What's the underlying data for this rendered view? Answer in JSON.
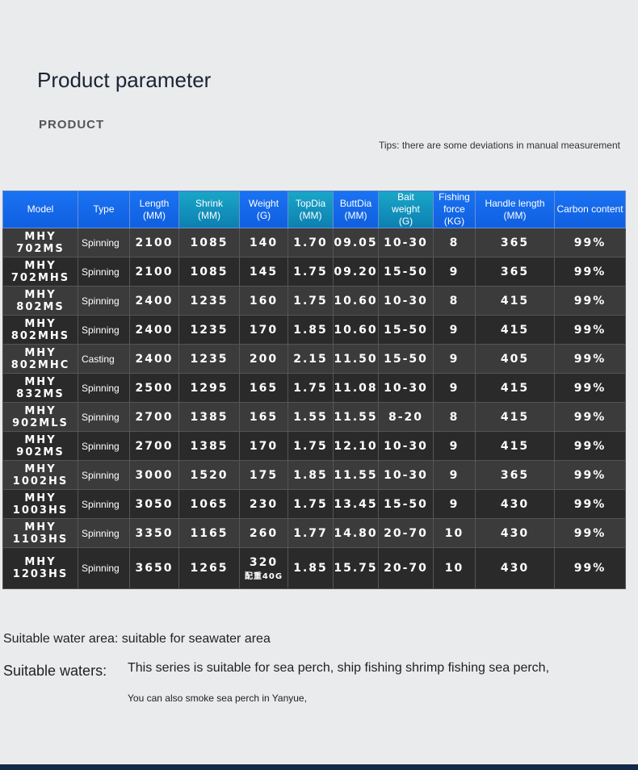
{
  "header": {
    "title": "Product parameter",
    "section": "PRODUCT",
    "tips": "Tips: there are some deviations in manual measurement"
  },
  "table": {
    "headers": [
      [
        "Model"
      ],
      [
        "Type"
      ],
      [
        "Length",
        "(MM)"
      ],
      [
        "Shrink",
        "(MM)"
      ],
      [
        "Weight",
        "(G)"
      ],
      [
        "TopDia",
        "(MM)"
      ],
      [
        "ButtDia",
        "(MM)"
      ],
      [
        "Bait",
        "weight",
        "(G)"
      ],
      [
        "Fishing",
        "force",
        "(KG)"
      ],
      [
        "Handle length",
        "(MM)"
      ],
      [
        "Carbon content"
      ]
    ],
    "rows": [
      [
        [
          "MHY",
          "702MS"
        ],
        "Spinning",
        "2100",
        "1085",
        "140",
        "1.70",
        "09.05",
        "10-30",
        "8",
        "365",
        "99%"
      ],
      [
        [
          "MHY",
          "702MHS"
        ],
        "Spinning",
        "2100",
        "1085",
        "145",
        "1.75",
        "09.20",
        "15-50",
        "9",
        "365",
        "99%"
      ],
      [
        [
          "MHY",
          "802MS"
        ],
        "Spinning",
        "2400",
        "1235",
        "160",
        "1.75",
        "10.60",
        "10-30",
        "8",
        "415",
        "99%"
      ],
      [
        [
          "MHY",
          "802MHS"
        ],
        "Spinning",
        "2400",
        "1235",
        "170",
        "1.85",
        "10.60",
        "15-50",
        "9",
        "415",
        "99%"
      ],
      [
        [
          "MHY",
          "802MHC"
        ],
        "Casting",
        "2400",
        "1235",
        "200",
        "2.15",
        "11.50",
        "15-50",
        "9",
        "405",
        "99%"
      ],
      [
        [
          "MHY",
          "832MS"
        ],
        "Spinning",
        "2500",
        "1295",
        "165",
        "1.75",
        "11.08",
        "10-30",
        "9",
        "415",
        "99%"
      ],
      [
        [
          "MHY",
          "902MLS"
        ],
        "Spinning",
        "2700",
        "1385",
        "165",
        "1.55",
        "11.55",
        "8-20",
        "8",
        "415",
        "99%"
      ],
      [
        [
          "MHY",
          "902MS"
        ],
        "Spinning",
        "2700",
        "1385",
        "170",
        "1.75",
        "12.10",
        "10-30",
        "9",
        "415",
        "99%"
      ],
      [
        [
          "MHY",
          "1002HS"
        ],
        "Spinning",
        "3000",
        "1520",
        "175",
        "1.85",
        "11.55",
        "10-30",
        "9",
        "365",
        "99%"
      ],
      [
        [
          "MHY",
          "1003HS"
        ],
        "Spinning",
        "3050",
        "1065",
        "230",
        "1.75",
        "13.45",
        "15-50",
        "9",
        "430",
        "99%"
      ],
      [
        [
          "MHY",
          "1103HS"
        ],
        "Spinning",
        "3350",
        "1165",
        "260",
        "1.77",
        "14.80",
        "20-70",
        "10",
        "430",
        "99%"
      ],
      [
        [
          "MHY",
          "1203HS"
        ],
        "Spinning",
        "3650",
        "1265",
        [
          "320",
          "配重40G"
        ],
        "1.85",
        "15.75",
        "20-70",
        "10",
        "430",
        "99%"
      ]
    ]
  },
  "notes": {
    "water_area": "Suitable water area: suitable for seawater area",
    "waters_label": "Suitable waters:",
    "waters_line1": "This series is suitable for sea perch, ship fishing shrimp fishing sea perch,",
    "waters_line2": "You can also smoke sea perch in Yanyue,"
  }
}
